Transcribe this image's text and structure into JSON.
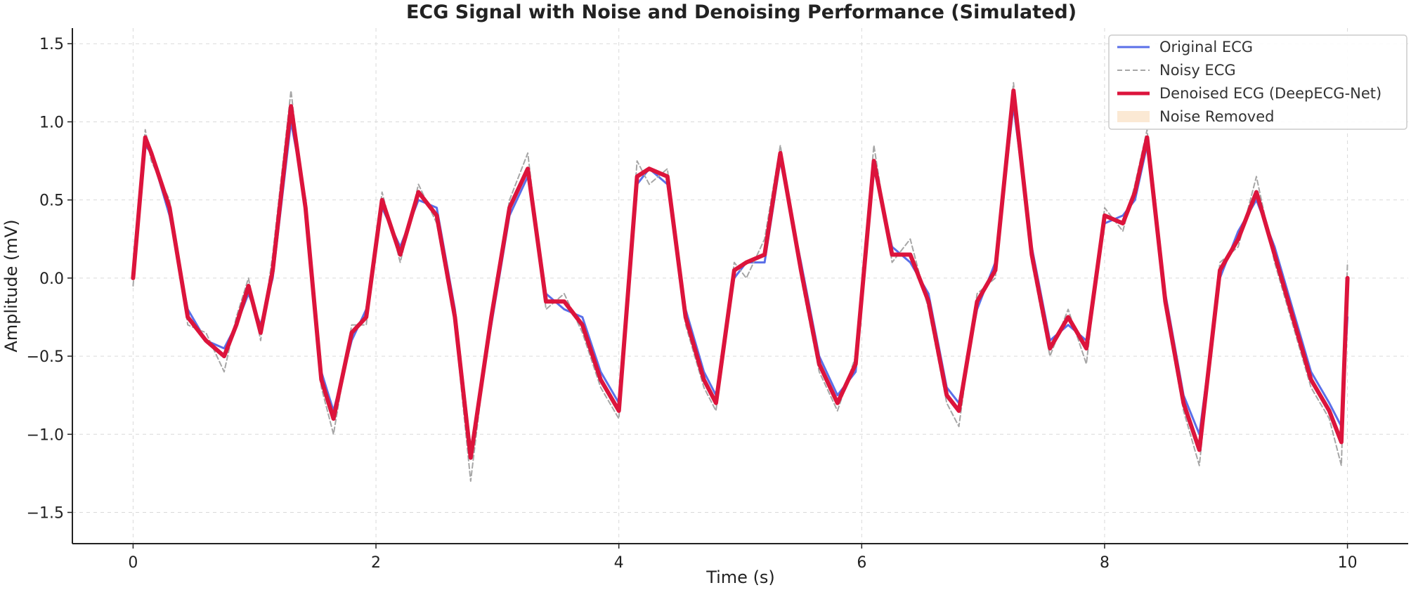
{
  "chart_data": {
    "type": "line",
    "title": "ECG Signal with Noise and Denoising Performance (Simulated)",
    "xlabel": "Time (s)",
    "ylabel": "Amplitude (mV)",
    "xlim": [
      -0.5,
      10.5
    ],
    "ylim": [
      -1.7,
      1.6
    ],
    "xticks": [
      0,
      2,
      4,
      6,
      8,
      10
    ],
    "yticks": [
      -1.5,
      -1.0,
      -0.5,
      0.0,
      0.5,
      1.0,
      1.5
    ],
    "xtick_labels": [
      "0",
      "2",
      "4",
      "6",
      "8",
      "10"
    ],
    "ytick_labels": [
      "−1.5",
      "−1.0",
      "−0.5",
      "0.0",
      "0.5",
      "1.0",
      "1.5"
    ],
    "grid": true,
    "legend_position": "top-right",
    "x": [
      0.0,
      0.1,
      0.15,
      0.3,
      0.45,
      0.6,
      0.75,
      0.85,
      0.95,
      1.05,
      1.15,
      1.3,
      1.42,
      1.55,
      1.65,
      1.8,
      1.92,
      2.05,
      2.2,
      2.35,
      2.5,
      2.65,
      2.78,
      2.95,
      3.1,
      3.25,
      3.4,
      3.55,
      3.7,
      3.85,
      4.0,
      4.15,
      4.25,
      4.4,
      4.55,
      4.7,
      4.8,
      4.95,
      5.05,
      5.2,
      5.33,
      5.5,
      5.65,
      5.8,
      5.95,
      6.1,
      6.25,
      6.4,
      6.55,
      6.7,
      6.8,
      6.95,
      7.1,
      7.25,
      7.4,
      7.55,
      7.7,
      7.85,
      8.0,
      8.15,
      8.25,
      8.35,
      8.5,
      8.65,
      8.78,
      8.95,
      9.1,
      9.25,
      9.4,
      9.55,
      9.7,
      9.85,
      9.95,
      10.0
    ],
    "series": [
      {
        "name": "Original ECG",
        "color": "#5a6fe8",
        "values": [
          0.0,
          0.85,
          0.8,
          0.4,
          -0.2,
          -0.4,
          -0.45,
          -0.3,
          -0.1,
          -0.3,
          0.0,
          1.0,
          0.5,
          -0.6,
          -0.85,
          -0.4,
          -0.2,
          0.45,
          0.2,
          0.5,
          0.45,
          -0.2,
          -1.1,
          -0.3,
          0.4,
          0.65,
          -0.1,
          -0.2,
          -0.25,
          -0.6,
          -0.8,
          0.6,
          0.7,
          0.6,
          -0.2,
          -0.6,
          -0.75,
          0.0,
          0.1,
          0.1,
          0.75,
          0.1,
          -0.5,
          -0.75,
          -0.6,
          0.7,
          0.2,
          0.1,
          -0.1,
          -0.7,
          -0.8,
          -0.2,
          0.1,
          1.1,
          0.2,
          -0.4,
          -0.3,
          -0.4,
          0.35,
          0.4,
          0.5,
          0.85,
          -0.1,
          -0.75,
          -1.0,
          0.0,
          0.3,
          0.5,
          0.2,
          -0.2,
          -0.6,
          -0.8,
          -0.95,
          -0.25
        ]
      },
      {
        "name": "Noisy ECG",
        "color": "#a6a6a6",
        "values": [
          -0.05,
          0.95,
          0.75,
          0.5,
          -0.3,
          -0.35,
          -0.6,
          -0.25,
          0.0,
          -0.4,
          0.15,
          1.2,
          0.4,
          -0.7,
          -1.0,
          -0.3,
          -0.3,
          0.55,
          0.1,
          0.6,
          0.35,
          -0.3,
          -1.3,
          -0.2,
          0.5,
          0.8,
          -0.2,
          -0.1,
          -0.35,
          -0.7,
          -0.9,
          0.75,
          0.6,
          0.7,
          -0.3,
          -0.7,
          -0.85,
          0.1,
          0.0,
          0.25,
          0.85,
          0.0,
          -0.6,
          -0.85,
          -0.5,
          0.85,
          0.1,
          0.25,
          -0.2,
          -0.8,
          -0.95,
          -0.1,
          0.0,
          1.25,
          0.1,
          -0.5,
          -0.2,
          -0.55,
          0.45,
          0.3,
          0.6,
          0.95,
          -0.2,
          -0.85,
          -1.2,
          0.1,
          0.2,
          0.65,
          0.1,
          -0.3,
          -0.7,
          -0.9,
          -1.2,
          0.1
        ]
      },
      {
        "name": "Denoised ECG (DeepECG-Net)",
        "color": "#dc143c",
        "values": [
          0.0,
          0.9,
          0.8,
          0.45,
          -0.25,
          -0.4,
          -0.5,
          -0.3,
          -0.05,
          -0.35,
          0.05,
          1.1,
          0.45,
          -0.65,
          -0.9,
          -0.35,
          -0.25,
          0.5,
          0.15,
          0.55,
          0.4,
          -0.25,
          -1.15,
          -0.25,
          0.45,
          0.7,
          -0.15,
          -0.15,
          -0.3,
          -0.65,
          -0.85,
          0.65,
          0.7,
          0.65,
          -0.25,
          -0.65,
          -0.8,
          0.05,
          0.1,
          0.15,
          0.8,
          0.05,
          -0.55,
          -0.8,
          -0.55,
          0.75,
          0.15,
          0.15,
          -0.15,
          -0.75,
          -0.85,
          -0.15,
          0.05,
          1.2,
          0.15,
          -0.45,
          -0.25,
          -0.45,
          0.4,
          0.35,
          0.55,
          0.9,
          -0.15,
          -0.8,
          -1.1,
          0.05,
          0.25,
          0.55,
          0.15,
          -0.25,
          -0.65,
          -0.85,
          -1.05,
          0.0
        ]
      }
    ],
    "legend": [
      {
        "label": "Original ECG",
        "style": "line",
        "color": "#5a6fe8"
      },
      {
        "label": "Noisy ECG",
        "style": "dashed",
        "color": "#a6a6a6"
      },
      {
        "label": "Denoised ECG (DeepECG-Net)",
        "style": "thick",
        "color": "#dc143c"
      },
      {
        "label": "Noise Removed",
        "style": "patch",
        "color": "#fbe9d4"
      }
    ]
  }
}
